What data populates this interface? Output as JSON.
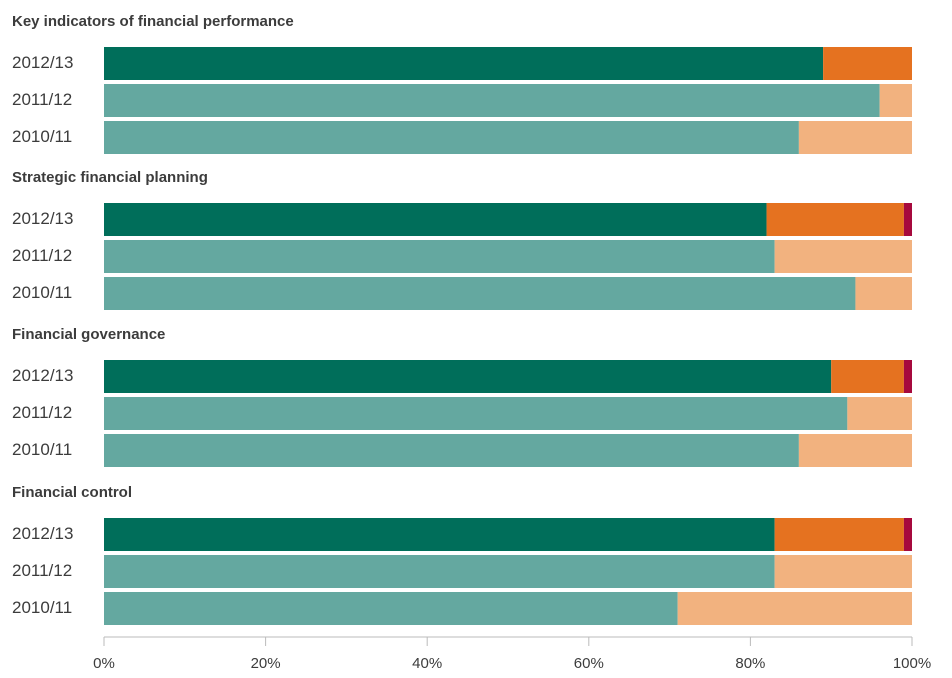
{
  "chart_data": {
    "type": "stacked_bar_h",
    "xlim": [
      0,
      100
    ],
    "xticks": [
      {
        "value": 0,
        "label": "0%"
      },
      {
        "value": 20,
        "label": "20%"
      },
      {
        "value": 40,
        "label": "40%"
      },
      {
        "value": 60,
        "label": "60%"
      },
      {
        "value": 80,
        "label": "80%"
      },
      {
        "value": 100,
        "label": "100%"
      }
    ],
    "groups": [
      {
        "title": "Key indicators of financial performance",
        "categories": [
          "2012/13",
          "2011/12",
          "2010/11"
        ],
        "series": [
          {
            "colors": [
              "#006e5a",
              "#64a8a0",
              "#64a8a0"
            ],
            "values": [
              89,
              96,
              86
            ]
          },
          {
            "colors": [
              "#e57220",
              "#f2b27f",
              "#f2b27f"
            ],
            "values": [
              11,
              4,
              14
            ]
          },
          {
            "colors": [
              "#a6093d",
              "#a6093d",
              "#a6093d"
            ],
            "values": [
              0,
              0,
              0
            ]
          }
        ]
      },
      {
        "title": "Strategic financial planning",
        "categories": [
          "2012/13",
          "2011/12",
          "2010/11"
        ],
        "series": [
          {
            "colors": [
              "#006e5a",
              "#64a8a0",
              "#64a8a0"
            ],
            "values": [
              82,
              83,
              93
            ]
          },
          {
            "colors": [
              "#e57220",
              "#f2b27f",
              "#f2b27f"
            ],
            "values": [
              17,
              17,
              7
            ]
          },
          {
            "colors": [
              "#a6093d",
              "#a6093d",
              "#a6093d"
            ],
            "values": [
              1,
              0,
              0
            ]
          }
        ]
      },
      {
        "title": "Financial governance",
        "categories": [
          "2012/13",
          "2011/12",
          "2010/11"
        ],
        "series": [
          {
            "colors": [
              "#006e5a",
              "#64a8a0",
              "#64a8a0"
            ],
            "values": [
              90,
              92,
              86
            ]
          },
          {
            "colors": [
              "#e57220",
              "#f2b27f",
              "#f2b27f"
            ],
            "values": [
              9,
              8,
              14
            ]
          },
          {
            "colors": [
              "#a6093d",
              "#a6093d",
              "#a6093d"
            ],
            "values": [
              1,
              0,
              0
            ]
          }
        ]
      },
      {
        "title": "Financial control",
        "categories": [
          "2012/13",
          "2011/12",
          "2010/11"
        ],
        "series": [
          {
            "colors": [
              "#006e5a",
              "#64a8a0",
              "#64a8a0"
            ],
            "values": [
              83,
              83,
              71
            ]
          },
          {
            "colors": [
              "#e57220",
              "#f2b27f",
              "#f2b27f"
            ],
            "values": [
              16,
              17,
              29
            ]
          },
          {
            "colors": [
              "#a6093d",
              "#a6093d",
              "#a6093d"
            ],
            "values": [
              1,
              0,
              0
            ]
          }
        ]
      }
    ]
  }
}
